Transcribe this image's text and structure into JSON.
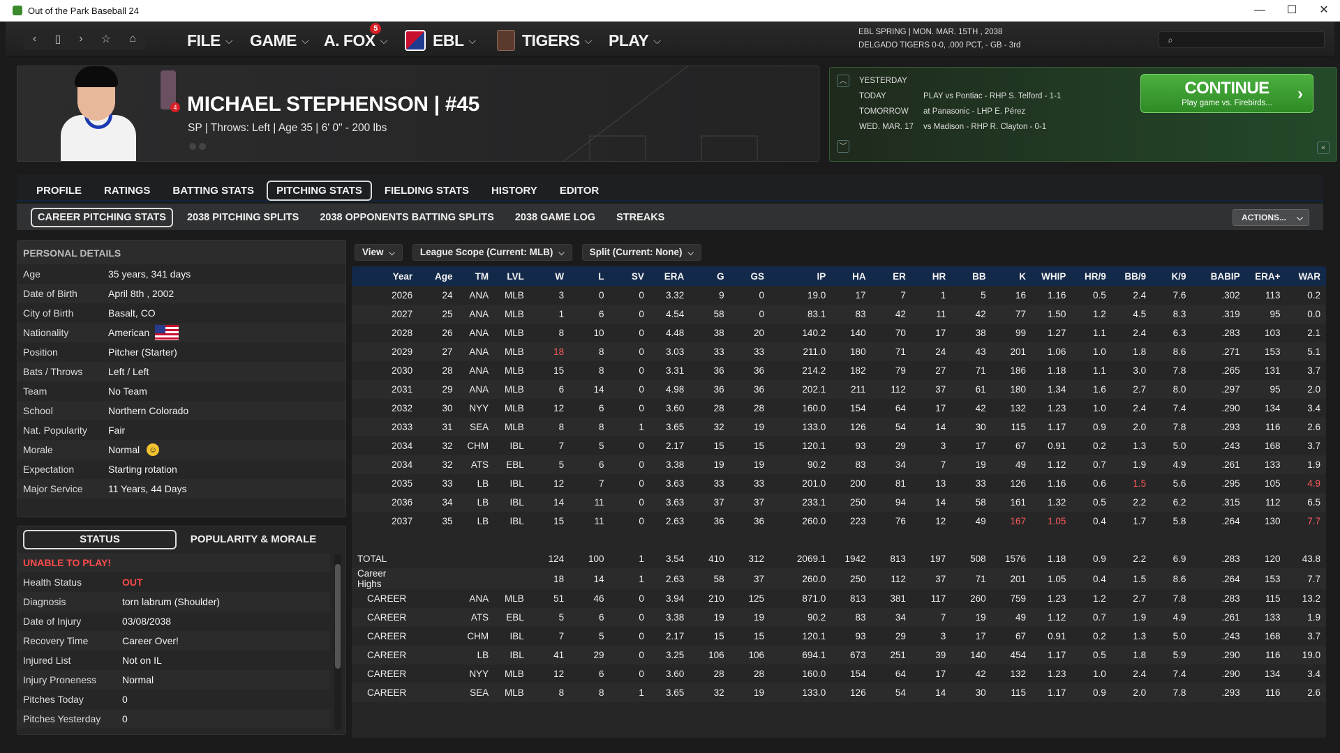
{
  "window": {
    "title": "Out of the Park Baseball 24",
    "minimize": "—",
    "maximize": "☐",
    "close": "✕"
  },
  "nav": {
    "back": "‹",
    "doc": "▯",
    "forward": "›",
    "star": "☆",
    "home": "⌂"
  },
  "menus": [
    {
      "label": "FILE"
    },
    {
      "label": "GAME"
    },
    {
      "label": "A. FOX",
      "badge": "5"
    },
    {
      "label": "EBL"
    },
    {
      "label": "TIGERS"
    },
    {
      "label": "PLAY"
    }
  ],
  "topinfo": {
    "line1": "EBL SPRING  |  MON. MAR. 15TH , 2038",
    "line2": "DELGADO TIGERS  0-0, .000 PCT, - GB - 3rd"
  },
  "player": {
    "name": "MICHAEL STEPHENSON  |  #45",
    "info": "SP | Throws: Left  |  Age 35  |  6' 0\" - 200 lbs",
    "badge": "4"
  },
  "schedule": {
    "rows": [
      {
        "label": "YESTERDAY",
        "text": ""
      },
      {
        "label": "TODAY",
        "text": "PLAY vs Pontiac - RHP S. Telford - 1-1"
      },
      {
        "label": "TOMORROW",
        "text": "at Panasonic - LHP E. Pérez"
      },
      {
        "label": "WED. MAR. 17",
        "text": "vs Madison - RHP R. Clayton - 0-1"
      }
    ],
    "continue_label": "CONTINUE",
    "continue_sub": "Play game vs. Firebirds..."
  },
  "tabs": [
    "PROFILE",
    "RATINGS",
    "BATTING STATS",
    "PITCHING STATS",
    "FIELDING STATS",
    "HISTORY",
    "EDITOR"
  ],
  "active_tab": "PITCHING STATS",
  "subtabs": [
    "CAREER PITCHING STATS",
    "2038 PITCHING SPLITS",
    "2038 OPPONENTS BATTING SPLITS",
    "2038 GAME LOG",
    "STREAKS"
  ],
  "actions_label": "ACTIONS...",
  "personal": {
    "header": "PERSONAL DETAILS",
    "rows": [
      {
        "k": "Age",
        "v": "35 years, 341 days"
      },
      {
        "k": "Date of Birth",
        "v": "April 8th , 2002"
      },
      {
        "k": "City of Birth",
        "v": "Basalt, CO"
      },
      {
        "k": "Nationality",
        "v": "American"
      },
      {
        "k": "Position",
        "v": "Pitcher (Starter)"
      },
      {
        "k": "Bats / Throws",
        "v": "Left / Left"
      },
      {
        "k": "Team",
        "v": "No Team"
      },
      {
        "k": "School",
        "v": "Northern Colorado"
      },
      {
        "k": "Nat. Popularity",
        "v": "Fair"
      },
      {
        "k": "Morale",
        "v": "Normal"
      },
      {
        "k": "Expectation",
        "v": "Starting rotation"
      },
      {
        "k": "Major Service",
        "v": "11 Years, 44 Days"
      }
    ]
  },
  "status": {
    "tab1": "STATUS",
    "tab2": "POPULARITY & MORALE",
    "alert": "UNABLE TO PLAY!",
    "rows": [
      {
        "k": "Health Status",
        "v": "OUT"
      },
      {
        "k": "Diagnosis",
        "v": "torn labrum (Shoulder)"
      },
      {
        "k": "Date of Injury",
        "v": "03/08/2038"
      },
      {
        "k": "Recovery Time",
        "v": "Career Over!"
      },
      {
        "k": "Injured List",
        "v": "Not on IL"
      },
      {
        "k": "Injury Proneness",
        "v": "Normal"
      },
      {
        "k": "Pitches Today",
        "v": "0"
      },
      {
        "k": "Pitches Yesterday",
        "v": "0"
      }
    ]
  },
  "filters": [
    "View",
    "League Scope (Current: MLB)",
    "Split (Current: None)"
  ],
  "stats": {
    "columns": [
      "Year",
      "Age",
      "TM",
      "LVL",
      "W",
      "L",
      "SV",
      "ERA",
      "G",
      "GS",
      "IP",
      "HA",
      "ER",
      "HR",
      "BB",
      "K",
      "WHIP",
      "HR/9",
      "BB/9",
      "K/9",
      "BABIP",
      "ERA+",
      "WAR"
    ],
    "rows": [
      [
        "2026",
        "24",
        "ANA",
        "MLB",
        "3",
        "0",
        "0",
        "3.32",
        "9",
        "0",
        "19.0",
        "17",
        "7",
        "1",
        "5",
        "16",
        "1.16",
        "0.5",
        "2.4",
        "7.6",
        ".302",
        "113",
        "0.2"
      ],
      [
        "2027",
        "25",
        "ANA",
        "MLB",
        "1",
        "6",
        "0",
        "4.54",
        "58",
        "0",
        "83.1",
        "83",
        "42",
        "11",
        "42",
        "77",
        "1.50",
        "1.2",
        "4.5",
        "8.3",
        ".319",
        "95",
        "0.0"
      ],
      [
        "2028",
        "26",
        "ANA",
        "MLB",
        "8",
        "10",
        "0",
        "4.48",
        "38",
        "20",
        "140.2",
        "140",
        "70",
        "17",
        "38",
        "99",
        "1.27",
        "1.1",
        "2.4",
        "6.3",
        ".283",
        "103",
        "2.1"
      ],
      [
        "2029",
        "27",
        "ANA",
        "MLB",
        "18",
        "8",
        "0",
        "3.03",
        "33",
        "33",
        "211.0",
        "180",
        "71",
        "24",
        "43",
        "201",
        "1.06",
        "1.0",
        "1.8",
        "8.6",
        ".271",
        "153",
        "5.1"
      ],
      [
        "2030",
        "28",
        "ANA",
        "MLB",
        "15",
        "8",
        "0",
        "3.31",
        "36",
        "36",
        "214.2",
        "182",
        "79",
        "27",
        "71",
        "186",
        "1.18",
        "1.1",
        "3.0",
        "7.8",
        ".265",
        "131",
        "3.7"
      ],
      [
        "2031",
        "29",
        "ANA",
        "MLB",
        "6",
        "14",
        "0",
        "4.98",
        "36",
        "36",
        "202.1",
        "211",
        "112",
        "37",
        "61",
        "180",
        "1.34",
        "1.6",
        "2.7",
        "8.0",
        ".297",
        "95",
        "2.0"
      ],
      [
        "2032",
        "30",
        "NYY",
        "MLB",
        "12",
        "6",
        "0",
        "3.60",
        "28",
        "28",
        "160.0",
        "154",
        "64",
        "17",
        "42",
        "132",
        "1.23",
        "1.0",
        "2.4",
        "7.4",
        ".290",
        "134",
        "3.4"
      ],
      [
        "2033",
        "31",
        "SEA",
        "MLB",
        "8",
        "8",
        "1",
        "3.65",
        "32",
        "19",
        "133.0",
        "126",
        "54",
        "14",
        "30",
        "115",
        "1.17",
        "0.9",
        "2.0",
        "7.8",
        ".293",
        "116",
        "2.6"
      ],
      [
        "2034",
        "32",
        "CHM",
        "IBL",
        "7",
        "5",
        "0",
        "2.17",
        "15",
        "15",
        "120.1",
        "93",
        "29",
        "3",
        "17",
        "67",
        "0.91",
        "0.2",
        "1.3",
        "5.0",
        ".243",
        "168",
        "3.7"
      ],
      [
        "2034",
        "32",
        "ATS",
        "EBL",
        "5",
        "6",
        "0",
        "3.38",
        "19",
        "19",
        "90.2",
        "83",
        "34",
        "7",
        "19",
        "49",
        "1.12",
        "0.7",
        "1.9",
        "4.9",
        ".261",
        "133",
        "1.9"
      ],
      [
        "2035",
        "33",
        "LB",
        "IBL",
        "12",
        "7",
        "0",
        "3.63",
        "33",
        "33",
        "201.0",
        "200",
        "81",
        "13",
        "33",
        "126",
        "1.16",
        "0.6",
        "1.5",
        "5.6",
        ".295",
        "105",
        "4.9"
      ],
      [
        "2036",
        "34",
        "LB",
        "IBL",
        "14",
        "11",
        "0",
        "3.63",
        "37",
        "37",
        "233.1",
        "250",
        "94",
        "14",
        "58",
        "161",
        "1.32",
        "0.5",
        "2.2",
        "6.2",
        ".315",
        "112",
        "6.5"
      ],
      [
        "2037",
        "35",
        "LB",
        "IBL",
        "15",
        "11",
        "0",
        "2.63",
        "36",
        "36",
        "260.0",
        "223",
        "76",
        "12",
        "49",
        "167",
        "1.05",
        "0.4",
        "1.7",
        "5.8",
        ".264",
        "130",
        "7.7"
      ]
    ],
    "highlights": [
      [
        3,
        4
      ],
      [
        10,
        18
      ],
      [
        10,
        22
      ],
      [
        12,
        15
      ],
      [
        12,
        16
      ],
      [
        12,
        22
      ]
    ],
    "summary": [
      [
        "TOTAL",
        "",
        "",
        "",
        "124",
        "100",
        "1",
        "3.54",
        "410",
        "312",
        "2069.1",
        "1942",
        "813",
        "197",
        "508",
        "1576",
        "1.18",
        "0.9",
        "2.2",
        "6.9",
        ".283",
        "120",
        "43.8"
      ],
      [
        "Career Highs",
        "",
        "",
        "",
        "18",
        "14",
        "1",
        "2.63",
        "58",
        "37",
        "260.0",
        "250",
        "112",
        "37",
        "71",
        "201",
        "1.05",
        "0.4",
        "1.5",
        "8.6",
        ".264",
        "153",
        "7.7"
      ],
      [
        "CAREER",
        "",
        "ANA",
        "MLB",
        "51",
        "46",
        "0",
        "3.94",
        "210",
        "125",
        "871.0",
        "813",
        "381",
        "117",
        "260",
        "759",
        "1.23",
        "1.2",
        "2.7",
        "7.8",
        ".283",
        "115",
        "13.2"
      ],
      [
        "CAREER",
        "",
        "ATS",
        "EBL",
        "5",
        "6",
        "0",
        "3.38",
        "19",
        "19",
        "90.2",
        "83",
        "34",
        "7",
        "19",
        "49",
        "1.12",
        "0.7",
        "1.9",
        "4.9",
        ".261",
        "133",
        "1.9"
      ],
      [
        "CAREER",
        "",
        "CHM",
        "IBL",
        "7",
        "5",
        "0",
        "2.17",
        "15",
        "15",
        "120.1",
        "93",
        "29",
        "3",
        "17",
        "67",
        "0.91",
        "0.2",
        "1.3",
        "5.0",
        ".243",
        "168",
        "3.7"
      ],
      [
        "CAREER",
        "",
        "LB",
        "IBL",
        "41",
        "29",
        "0",
        "3.25",
        "106",
        "106",
        "694.1",
        "673",
        "251",
        "39",
        "140",
        "454",
        "1.17",
        "0.5",
        "1.8",
        "5.9",
        ".290",
        "116",
        "19.0"
      ],
      [
        "CAREER",
        "",
        "NYY",
        "MLB",
        "12",
        "6",
        "0",
        "3.60",
        "28",
        "28",
        "160.0",
        "154",
        "64",
        "17",
        "42",
        "132",
        "1.23",
        "1.0",
        "2.4",
        "7.4",
        ".290",
        "134",
        "3.4"
      ],
      [
        "CAREER",
        "",
        "SEA",
        "MLB",
        "8",
        "8",
        "1",
        "3.65",
        "32",
        "19",
        "133.0",
        "126",
        "54",
        "14",
        "30",
        "115",
        "1.17",
        "0.9",
        "2.0",
        "7.8",
        ".293",
        "116",
        "2.6"
      ]
    ]
  },
  "colors": {
    "highlight": "#ff5a5a",
    "accent_green": "#3aa32f",
    "header_blue": "#13294a"
  }
}
